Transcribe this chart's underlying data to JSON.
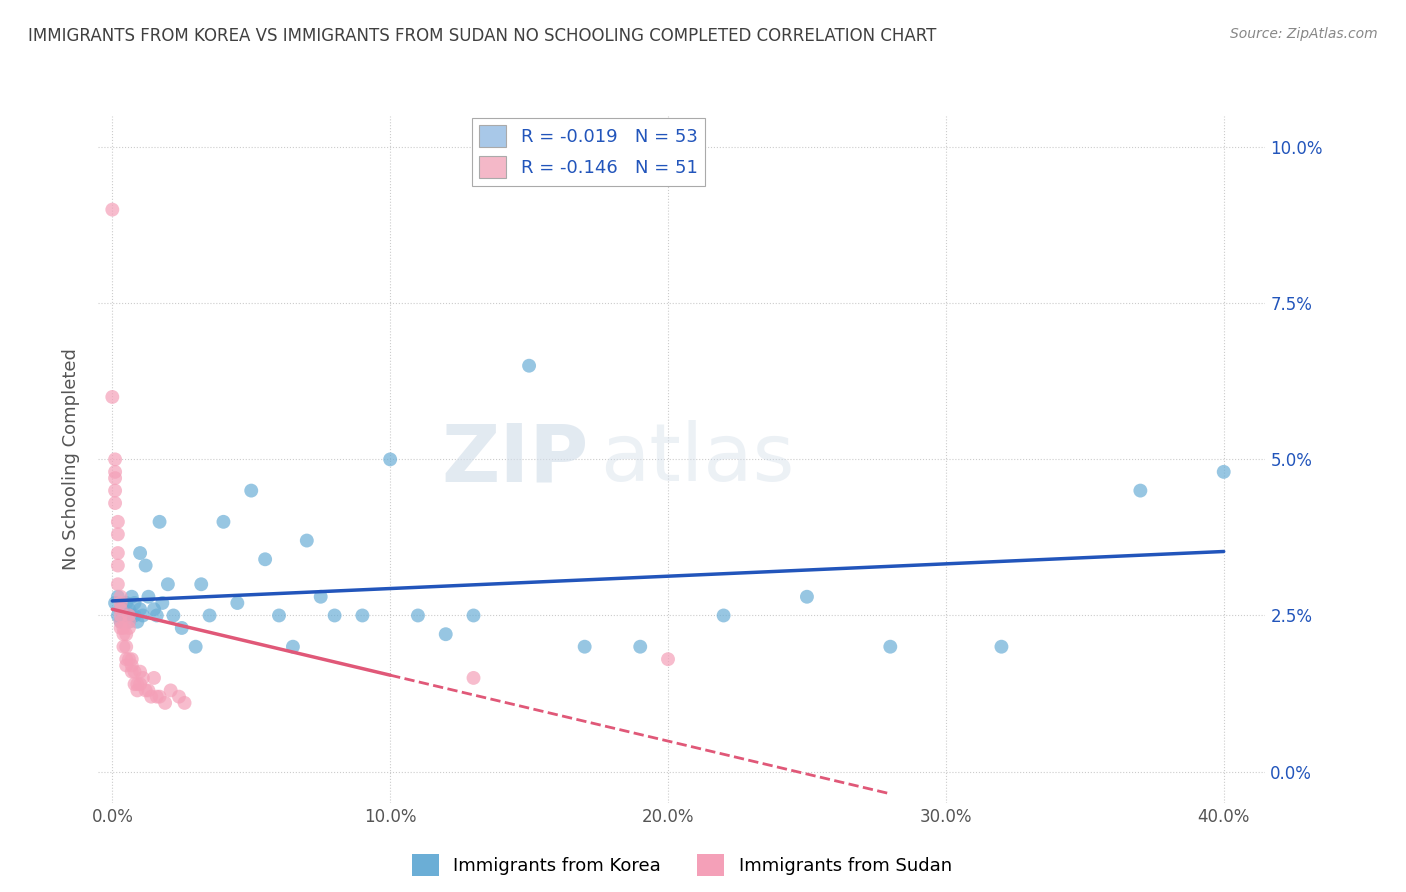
{
  "title": "IMMIGRANTS FROM KOREA VS IMMIGRANTS FROM SUDAN NO SCHOOLING COMPLETED CORRELATION CHART",
  "source": "Source: ZipAtlas.com",
  "xlim": [
    -0.005,
    0.415
  ],
  "ylim": [
    -0.005,
    0.105
  ],
  "ylabel": "No Schooling Completed",
  "legend_korea": {
    "R": "-0.019",
    "N": "53",
    "color": "#a8c8e8"
  },
  "legend_sudan": {
    "R": "-0.146",
    "N": "51",
    "color": "#f4b8c8"
  },
  "korea_scatter_color": "#6baed6",
  "sudan_scatter_color": "#f4a0b8",
  "korea_line_color": "#2255bb",
  "sudan_line_color": "#e05878",
  "watermark_bold": "ZIP",
  "watermark_light": "atlas",
  "background_color": "#ffffff",
  "grid_color": "#cccccc",
  "title_color": "#404040",
  "korea_x": [
    0.001,
    0.002,
    0.002,
    0.003,
    0.003,
    0.004,
    0.005,
    0.005,
    0.006,
    0.006,
    0.007,
    0.007,
    0.008,
    0.008,
    0.009,
    0.01,
    0.01,
    0.011,
    0.012,
    0.013,
    0.015,
    0.016,
    0.017,
    0.018,
    0.02,
    0.022,
    0.025,
    0.03,
    0.032,
    0.035,
    0.04,
    0.045,
    0.05,
    0.055,
    0.06,
    0.065,
    0.07,
    0.075,
    0.08,
    0.09,
    0.1,
    0.11,
    0.12,
    0.13,
    0.15,
    0.17,
    0.19,
    0.22,
    0.25,
    0.28,
    0.32,
    0.37,
    0.4
  ],
  "korea_y": [
    0.027,
    0.025,
    0.028,
    0.024,
    0.026,
    0.026,
    0.025,
    0.027,
    0.024,
    0.026,
    0.025,
    0.028,
    0.025,
    0.027,
    0.024,
    0.026,
    0.035,
    0.025,
    0.033,
    0.028,
    0.026,
    0.025,
    0.04,
    0.027,
    0.03,
    0.025,
    0.023,
    0.02,
    0.03,
    0.025,
    0.04,
    0.027,
    0.045,
    0.034,
    0.025,
    0.02,
    0.037,
    0.028,
    0.025,
    0.025,
    0.05,
    0.025,
    0.022,
    0.025,
    0.065,
    0.02,
    0.02,
    0.025,
    0.028,
    0.02,
    0.02,
    0.045,
    0.048
  ],
  "sudan_x": [
    0.0,
    0.0,
    0.001,
    0.001,
    0.001,
    0.001,
    0.001,
    0.002,
    0.002,
    0.002,
    0.002,
    0.002,
    0.003,
    0.003,
    0.003,
    0.003,
    0.003,
    0.003,
    0.004,
    0.004,
    0.004,
    0.005,
    0.005,
    0.005,
    0.005,
    0.006,
    0.006,
    0.006,
    0.006,
    0.007,
    0.007,
    0.007,
    0.008,
    0.008,
    0.009,
    0.009,
    0.01,
    0.01,
    0.011,
    0.012,
    0.013,
    0.014,
    0.015,
    0.016,
    0.017,
    0.019,
    0.021,
    0.024,
    0.026,
    0.13,
    0.2
  ],
  "sudan_y": [
    0.09,
    0.06,
    0.05,
    0.048,
    0.047,
    0.045,
    0.043,
    0.04,
    0.038,
    0.035,
    0.033,
    0.03,
    0.028,
    0.027,
    0.026,
    0.025,
    0.024,
    0.023,
    0.023,
    0.022,
    0.02,
    0.022,
    0.02,
    0.018,
    0.017,
    0.025,
    0.024,
    0.023,
    0.018,
    0.018,
    0.017,
    0.016,
    0.016,
    0.014,
    0.014,
    0.013,
    0.016,
    0.014,
    0.015,
    0.013,
    0.013,
    0.012,
    0.015,
    0.012,
    0.012,
    0.011,
    0.013,
    0.012,
    0.011,
    0.015,
    0.018
  ]
}
